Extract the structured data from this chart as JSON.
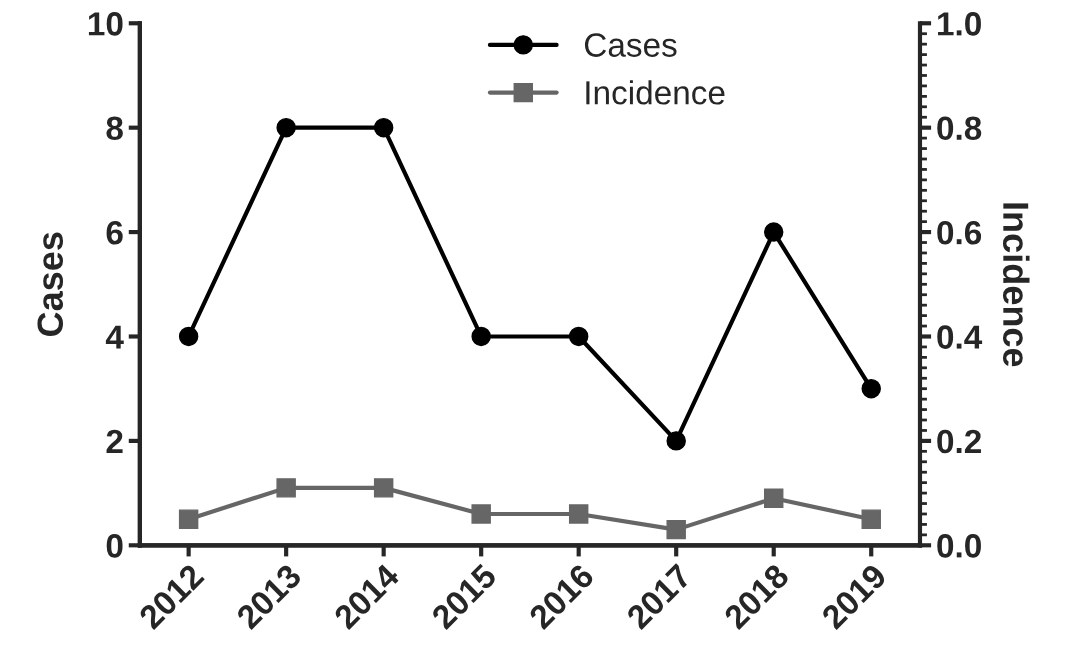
{
  "chart_data": {
    "type": "line",
    "ylabel": "Cases",
    "y2label": "Incidence",
    "categories": [
      "2012",
      "2013",
      "2014",
      "2015",
      "2016",
      "2017",
      "2018",
      "2019"
    ],
    "series": [
      {
        "name": "Cases",
        "color": "#000000",
        "marker": "circle",
        "values": [
          4,
          8,
          8,
          4,
          4,
          2,
          6,
          3
        ]
      },
      {
        "name": "Incidence",
        "color": "#666666",
        "marker": "square",
        "axis": "y2",
        "values": [
          0.05,
          0.11,
          0.11,
          0.06,
          0.06,
          0.03,
          0.09,
          0.05
        ]
      }
    ],
    "ylim": [
      0,
      10
    ],
    "yticks": [
      0,
      2,
      4,
      6,
      8,
      10
    ],
    "y2lim": [
      0,
      1
    ],
    "y2ticks": [
      {
        "value": 0,
        "label": "0.0"
      },
      {
        "value": 0.2,
        "label": "0.2"
      },
      {
        "value": 0.4,
        "label": "0.4"
      },
      {
        "value": 0.6,
        "label": "0.6"
      },
      {
        "value": 0.8,
        "label": "0.8"
      },
      {
        "value": 1,
        "label": "1.0"
      }
    ],
    "grid": false,
    "legend": "top",
    "line_style": "solid"
  }
}
